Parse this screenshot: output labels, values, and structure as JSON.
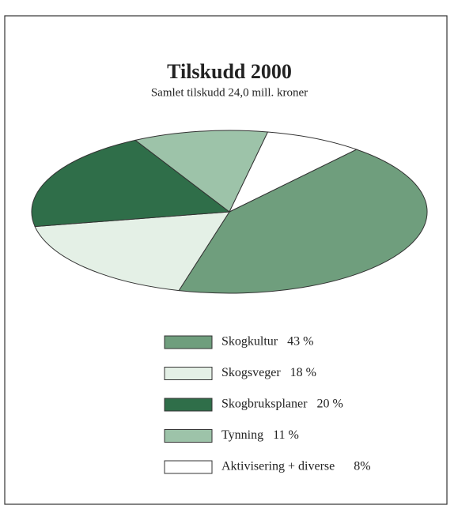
{
  "chart_data": {
    "type": "pie",
    "title": "Tilskudd 2000",
    "subtitle": "Samlet tilskudd 24,0 mill. kroner",
    "categories": [
      "Skogkultur",
      "Skogsveger",
      "Skogbruksplaner",
      "Tynning",
      "Aktivisering + diverse"
    ],
    "values": [
      43,
      18,
      20,
      11,
      8
    ],
    "value_labels": [
      "43 %",
      "18 %",
      "20 %",
      "11 %",
      "8%"
    ],
    "colors": [
      "#6f9e7d",
      "#e4f0e6",
      "#2f6e49",
      "#9dc3a9",
      "#ffffff"
    ],
    "legend": "bottom"
  }
}
